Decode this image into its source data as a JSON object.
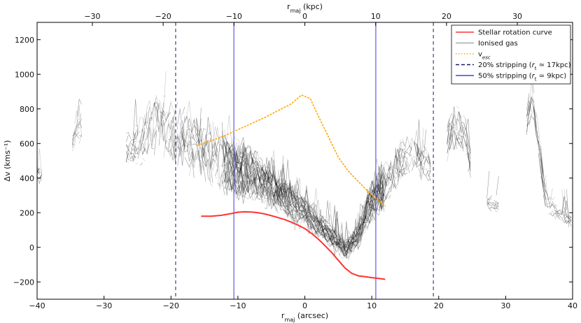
{
  "chart_data": {
    "type": "line",
    "xlabel": "r_maj (arcsec)",
    "xlabel_top": "r_maj (kpc)",
    "ylabel": "Δv (kms⁻¹)",
    "xlim": [
      -40,
      40
    ],
    "ylim": [
      -300,
      1300
    ],
    "top_xlim": [
      -37.8,
      37.8
    ],
    "x_ticks": [
      -40,
      -30,
      -20,
      -10,
      0,
      10,
      20,
      30,
      40
    ],
    "y_ticks": [
      -200,
      0,
      200,
      400,
      600,
      800,
      1000,
      1200
    ],
    "top_ticks": [
      -30,
      -20,
      -10,
      0,
      10,
      20,
      30
    ],
    "grid": false,
    "legend_position": "top-right",
    "legend": [
      {
        "label": "Stellar rotation curve",
        "color": "#ff3333",
        "style": "solid"
      },
      {
        "label": "Ionised gas",
        "color": "#aaaaaa",
        "style": "solid"
      },
      {
        "label": "v_esc",
        "color": "#ffa500",
        "style": "dotted"
      },
      {
        "label": "20% stripping (r_t ≃ 17kpc)",
        "color": "#1a1a66",
        "style": "dashed"
      },
      {
        "label": "50% stripping (r_t ≃ 9kpc)",
        "color": "#4444dd",
        "style": "solid"
      }
    ],
    "series": [
      {
        "name": "Stellar rotation curve",
        "color": "#ff3333",
        "x": [
          -15.5,
          -14,
          -12.5,
          -11,
          -10,
          -9,
          -8,
          -7,
          -6,
          -5,
          -4,
          -3,
          -2,
          -1,
          0,
          1,
          2,
          3,
          4,
          5,
          6,
          7,
          8,
          9,
          10,
          11,
          12
        ],
        "y": [
          180,
          180,
          185,
          195,
          203,
          205,
          204,
          200,
          193,
          183,
          172,
          160,
          145,
          128,
          108,
          80,
          48,
          10,
          -30,
          -75,
          -120,
          -150,
          -165,
          -170,
          -175,
          -180,
          -185
        ]
      },
      {
        "name": "v_esc",
        "color": "#ffa500",
        "x": [
          -16,
          -14,
          -12,
          -10,
          -8,
          -6,
          -4,
          -2,
          -0.5,
          0.8,
          2,
          3.5,
          5,
          6.5,
          8,
          9.5,
          11,
          12
        ],
        "y": [
          590,
          615,
          645,
          680,
          715,
          750,
          790,
          830,
          880,
          860,
          760,
          640,
          520,
          440,
          380,
          320,
          270,
          240
        ]
      }
    ],
    "vertical_lines": [
      {
        "x": -19.3,
        "color": "#1a1a66",
        "style": "dashed"
      },
      {
        "x": 19.2,
        "color": "#1a1a66",
        "style": "dashed"
      },
      {
        "x": -10.6,
        "color": "#4444dd",
        "style": "solid"
      },
      {
        "x": 10.6,
        "color": "#4444dd",
        "style": "solid"
      }
    ],
    "gas_envelope": {
      "color": "#000000",
      "x": [
        -40,
        -38,
        -36,
        -34,
        -32,
        -30,
        -28,
        -26,
        -24,
        -22,
        -20,
        -18,
        -16,
        -14,
        -12,
        -10,
        -8,
        -6,
        -4,
        -2,
        0,
        2,
        4,
        6,
        8,
        10,
        12,
        14,
        16,
        18,
        20,
        22,
        24,
        26,
        28,
        30,
        32,
        34,
        36,
        38,
        40
      ],
      "center": [
        420,
        430,
        440,
        700,
        620,
        580,
        580,
        560,
        620,
        700,
        640,
        600,
        560,
        500,
        460,
        430,
        400,
        360,
        300,
        250,
        200,
        120,
        60,
        -20,
        60,
        260,
        320,
        460,
        520,
        460,
        380,
        700,
        620,
        280,
        240,
        230,
        520,
        860,
        260,
        180,
        140
      ],
      "spread": [
        60,
        50,
        40,
        160,
        150,
        120,
        120,
        150,
        240,
        260,
        300,
        300,
        290,
        300,
        290,
        280,
        240,
        200,
        180,
        160,
        130,
        110,
        100,
        80,
        120,
        200,
        220,
        200,
        180,
        160,
        150,
        220,
        200,
        60,
        60,
        50,
        200,
        160,
        120,
        60,
        60
      ],
      "present": [
        1,
        0,
        0,
        1,
        0,
        0,
        0,
        1,
        1,
        1,
        1,
        1,
        1,
        1,
        1,
        1,
        1,
        1,
        1,
        1,
        1,
        1,
        1,
        1,
        1,
        1,
        1,
        1,
        1,
        1,
        0,
        1,
        1,
        0,
        1,
        0,
        0,
        1,
        1,
        1,
        1
      ]
    }
  }
}
